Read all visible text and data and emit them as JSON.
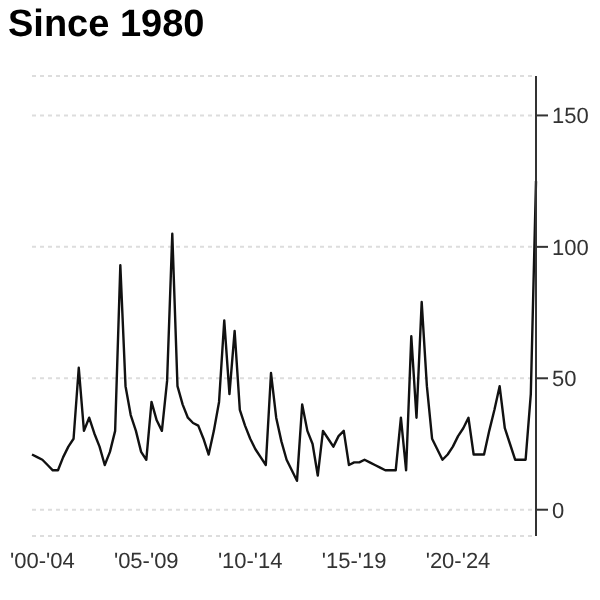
{
  "chart_data": {
    "type": "line",
    "title": "Since 1980",
    "categories": [
      null,
      null,
      "'00-'04",
      null,
      null,
      null,
      null,
      null,
      null,
      null,
      null,
      null,
      null,
      null,
      null,
      null,
      null,
      null,
      null,
      null,
      null,
      null,
      "'05-'09",
      null,
      null,
      null,
      null,
      null,
      null,
      null,
      null,
      null,
      null,
      null,
      null,
      null,
      null,
      null,
      null,
      null,
      null,
      null,
      "'10-'14",
      null,
      null,
      null,
      null,
      null,
      null,
      null,
      null,
      null,
      null,
      null,
      null,
      null,
      null,
      null,
      null,
      null,
      null,
      null,
      "'15-'19",
      null,
      null,
      null,
      null,
      null,
      null,
      null,
      null,
      null,
      null,
      null,
      null,
      null,
      null,
      null,
      null,
      null,
      null,
      null,
      "'20-'24",
      null,
      null,
      null,
      null,
      null,
      null,
      null,
      null,
      null,
      null,
      null,
      null,
      null,
      null,
      null
    ],
    "series": [
      {
        "color": "#111111",
        "values": [
          21,
          20,
          19,
          17,
          15,
          15,
          20,
          24,
          27,
          54,
          30,
          35,
          29,
          24,
          17,
          22,
          30,
          93,
          47,
          36,
          30,
          22,
          19,
          41,
          34,
          30,
          49,
          105,
          47,
          40,
          35,
          33,
          32,
          27,
          21,
          30,
          41,
          72,
          44,
          68,
          38,
          32,
          27,
          23,
          20,
          17,
          52,
          35,
          26,
          19,
          15,
          11,
          40,
          30,
          25,
          13,
          30,
          27,
          24,
          28,
          30,
          17,
          18,
          18,
          19,
          18,
          17,
          16,
          15,
          15,
          15,
          35,
          15,
          66,
          35,
          79,
          47,
          27,
          23,
          19,
          21,
          24,
          28,
          31,
          35,
          21,
          21,
          21,
          30,
          38,
          47,
          31,
          25,
          19,
          19,
          19,
          44,
          125
        ]
      }
    ],
    "ylim": [
      -10,
      165
    ],
    "yticks": [
      0,
      50,
      100,
      150
    ],
    "grid": "y",
    "marker": "none",
    "line_style": "solid"
  }
}
